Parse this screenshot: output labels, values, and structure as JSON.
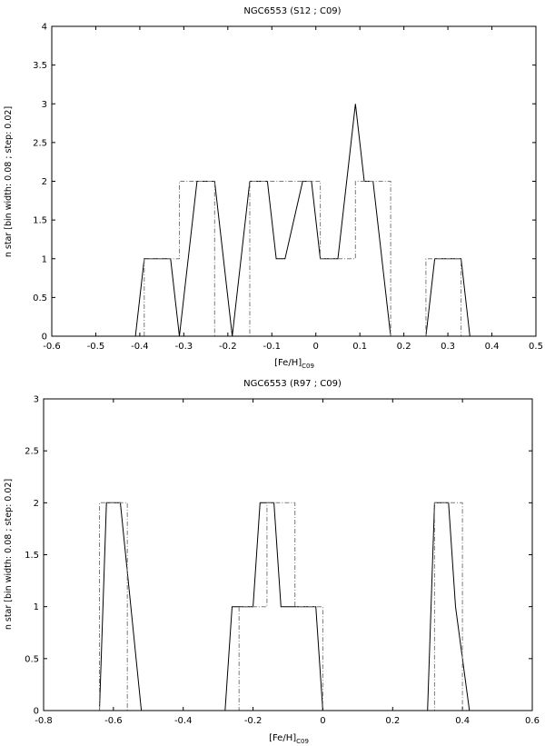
{
  "chart_data": [
    {
      "type": "line",
      "title": "NGC6553 (S12 ; C09)",
      "xlabel": "[Fe/H]",
      "xlabel_sub": "C09",
      "ylabel": "n star [bin width: 0.08 ; step: 0.02]",
      "xlim": [
        -0.6,
        0.5
      ],
      "ylim": [
        0,
        4
      ],
      "xticks": [
        -0.6,
        -0.5,
        -0.4,
        -0.3,
        -0.2,
        -0.1,
        0,
        0.1,
        0.2,
        0.3,
        0.4,
        0.5
      ],
      "xtick_labels": [
        "-0.6",
        "-0.5",
        "-0.4",
        "-0.3",
        "-0.2",
        "-0.1",
        "0",
        "0.1",
        "0.2",
        "0.3",
        "0.4",
        "0.5"
      ],
      "yticks": [
        0,
        0.5,
        1,
        1.5,
        2,
        2.5,
        3,
        3.5,
        4
      ],
      "ytick_labels": [
        "0",
        "0.5",
        "1",
        "1.5",
        "2",
        "2.5",
        "3",
        "3.5",
        "4"
      ],
      "grid": false,
      "series": [
        {
          "style": "solid",
          "x": [
            -0.41,
            -0.39,
            -0.33,
            -0.31,
            -0.27,
            -0.23,
            -0.19,
            -0.15,
            -0.11,
            -0.09,
            -0.07,
            -0.03,
            -0.01,
            0.01,
            0.05,
            0.09,
            0.11,
            0.13,
            0.17,
            0.25,
            0.27,
            0.33,
            0.35
          ],
          "y": [
            0,
            1,
            1,
            0,
            2,
            2,
            0,
            2,
            2,
            1,
            1,
            2,
            2,
            1,
            1,
            3,
            2,
            2,
            0,
            0,
            1,
            1,
            0
          ]
        },
        {
          "style": "dash-dot",
          "x": [
            -0.39,
            -0.39,
            -0.31,
            -0.31,
            -0.23,
            -0.23,
            -0.15,
            -0.15,
            0.01,
            0.01,
            0.09,
            0.09,
            0.17,
            0.17,
            0.25,
            0.25,
            0.33,
            0.33
          ],
          "y": [
            0,
            1,
            1,
            2,
            2,
            0,
            0,
            2,
            2,
            1,
            1,
            2,
            2,
            0,
            0,
            1,
            1,
            0
          ]
        }
      ]
    },
    {
      "type": "line",
      "title": "NGC6553 (R97 ; C09)",
      "xlabel": "[Fe/H]",
      "xlabel_sub": "C09",
      "ylabel": "n star [bin width: 0.08 ; step: 0.02]",
      "xlim": [
        -0.8,
        0.6
      ],
      "ylim": [
        0,
        3
      ],
      "xticks": [
        -0.8,
        -0.6,
        -0.4,
        -0.2,
        0,
        0.2,
        0.4,
        0.6
      ],
      "xtick_labels": [
        "-0.8",
        "-0.6",
        "-0.4",
        "-0.2",
        "0",
        "0.2",
        "0.4",
        "0.6"
      ],
      "yticks": [
        0,
        0.5,
        1,
        1.5,
        2,
        2.5,
        3
      ],
      "ytick_labels": [
        "0",
        "0.5",
        "1",
        "1.5",
        "2",
        "2.5",
        "3"
      ],
      "grid": false,
      "series": [
        {
          "style": "solid",
          "x": [
            -0.64,
            -0.62,
            -0.58,
            -0.52,
            -0.28,
            -0.26,
            -0.2,
            -0.18,
            -0.14,
            -0.12,
            -0.08,
            -0.02,
            0,
            0.3,
            0.32,
            0.36,
            0.38,
            0.42
          ],
          "y": [
            0,
            2,
            2,
            0,
            0,
            1,
            1,
            2,
            2,
            1,
            1,
            1,
            0,
            0,
            2,
            2,
            1,
            0
          ]
        },
        {
          "style": "dash-dot",
          "x": [
            -0.64,
            -0.64,
            -0.56,
            -0.56,
            -0.24,
            -0.24,
            -0.16,
            -0.16,
            -0.08,
            -0.08,
            0,
            0,
            0.32,
            0.32,
            0.4,
            0.4
          ],
          "y": [
            0,
            2,
            2,
            0,
            0,
            1,
            1,
            2,
            2,
            1,
            1,
            0,
            0,
            2,
            2,
            0
          ]
        }
      ]
    }
  ]
}
